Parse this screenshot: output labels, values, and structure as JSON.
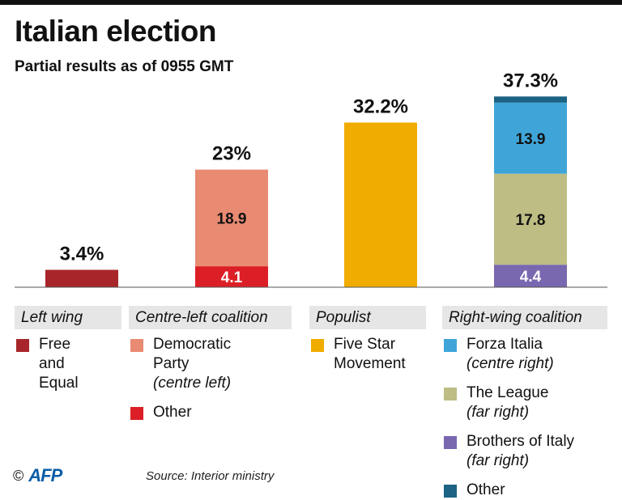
{
  "header": {
    "title": "Italian election",
    "subtitle": "Partial results as of 0955 GMT"
  },
  "chart_data": {
    "type": "bar",
    "stacked": true,
    "ylim": [
      0,
      40
    ],
    "bars": [
      {
        "total_label": "3.4%",
        "total": 3.4,
        "segments": [
          {
            "name": "Free and Equal",
            "value": 3.4,
            "color": "#a8262a",
            "label": ""
          }
        ]
      },
      {
        "total_label": "23%",
        "total": 23,
        "segments": [
          {
            "name": "Other",
            "value": 4.1,
            "color": "#dc1f26",
            "label": "4.1"
          },
          {
            "name": "Democratic Party",
            "value": 18.9,
            "color": "#e98a72",
            "label": "18.9"
          }
        ]
      },
      {
        "total_label": "32.2%",
        "total": 32.2,
        "segments": [
          {
            "name": "Five Star Movement",
            "value": 32.2,
            "color": "#f0ac00",
            "label": ""
          }
        ]
      },
      {
        "total_label": "37.3%",
        "total": 37.3,
        "segments": [
          {
            "name": "Brothers of Italy",
            "value": 4.4,
            "color": "#7967b0",
            "label": "4.4"
          },
          {
            "name": "The League",
            "value": 17.8,
            "color": "#bdbd84",
            "label": "17.8"
          },
          {
            "name": "Forza Italia",
            "value": 13.9,
            "color": "#3fa5d8",
            "label": "13.9"
          },
          {
            "name": "Other",
            "value": 1.2,
            "color": "#1b6284",
            "label": ""
          }
        ]
      }
    ]
  },
  "legend": {
    "groups": [
      {
        "header": "Left wing",
        "items": [
          {
            "name": "Free\nand\nEqual",
            "note": "",
            "color": "#a8262a"
          }
        ]
      },
      {
        "header": "Centre-left coalition",
        "items": [
          {
            "name": "Democratic\nParty",
            "note": "(centre left)",
            "color": "#e98a72"
          },
          {
            "name": "Other",
            "note": "",
            "color": "#dc1f26"
          }
        ]
      },
      {
        "header": "Populist",
        "items": [
          {
            "name": "Five Star\nMovement",
            "note": "",
            "color": "#f0ac00"
          }
        ]
      },
      {
        "header": "Right-wing coalition",
        "items": [
          {
            "name": "Forza Italia",
            "note": "(centre right)",
            "color": "#3fa5d8"
          },
          {
            "name": "The League",
            "note": "(far right)",
            "color": "#bdbd84"
          },
          {
            "name": "Brothers of Italy",
            "note": "(far right)",
            "color": "#7967b0"
          },
          {
            "name": "Other",
            "note": "",
            "color": "#1b6284"
          }
        ]
      }
    ]
  },
  "footer": {
    "copyright": "©",
    "logo": "AFP",
    "source": "Source: Interior ministry"
  }
}
